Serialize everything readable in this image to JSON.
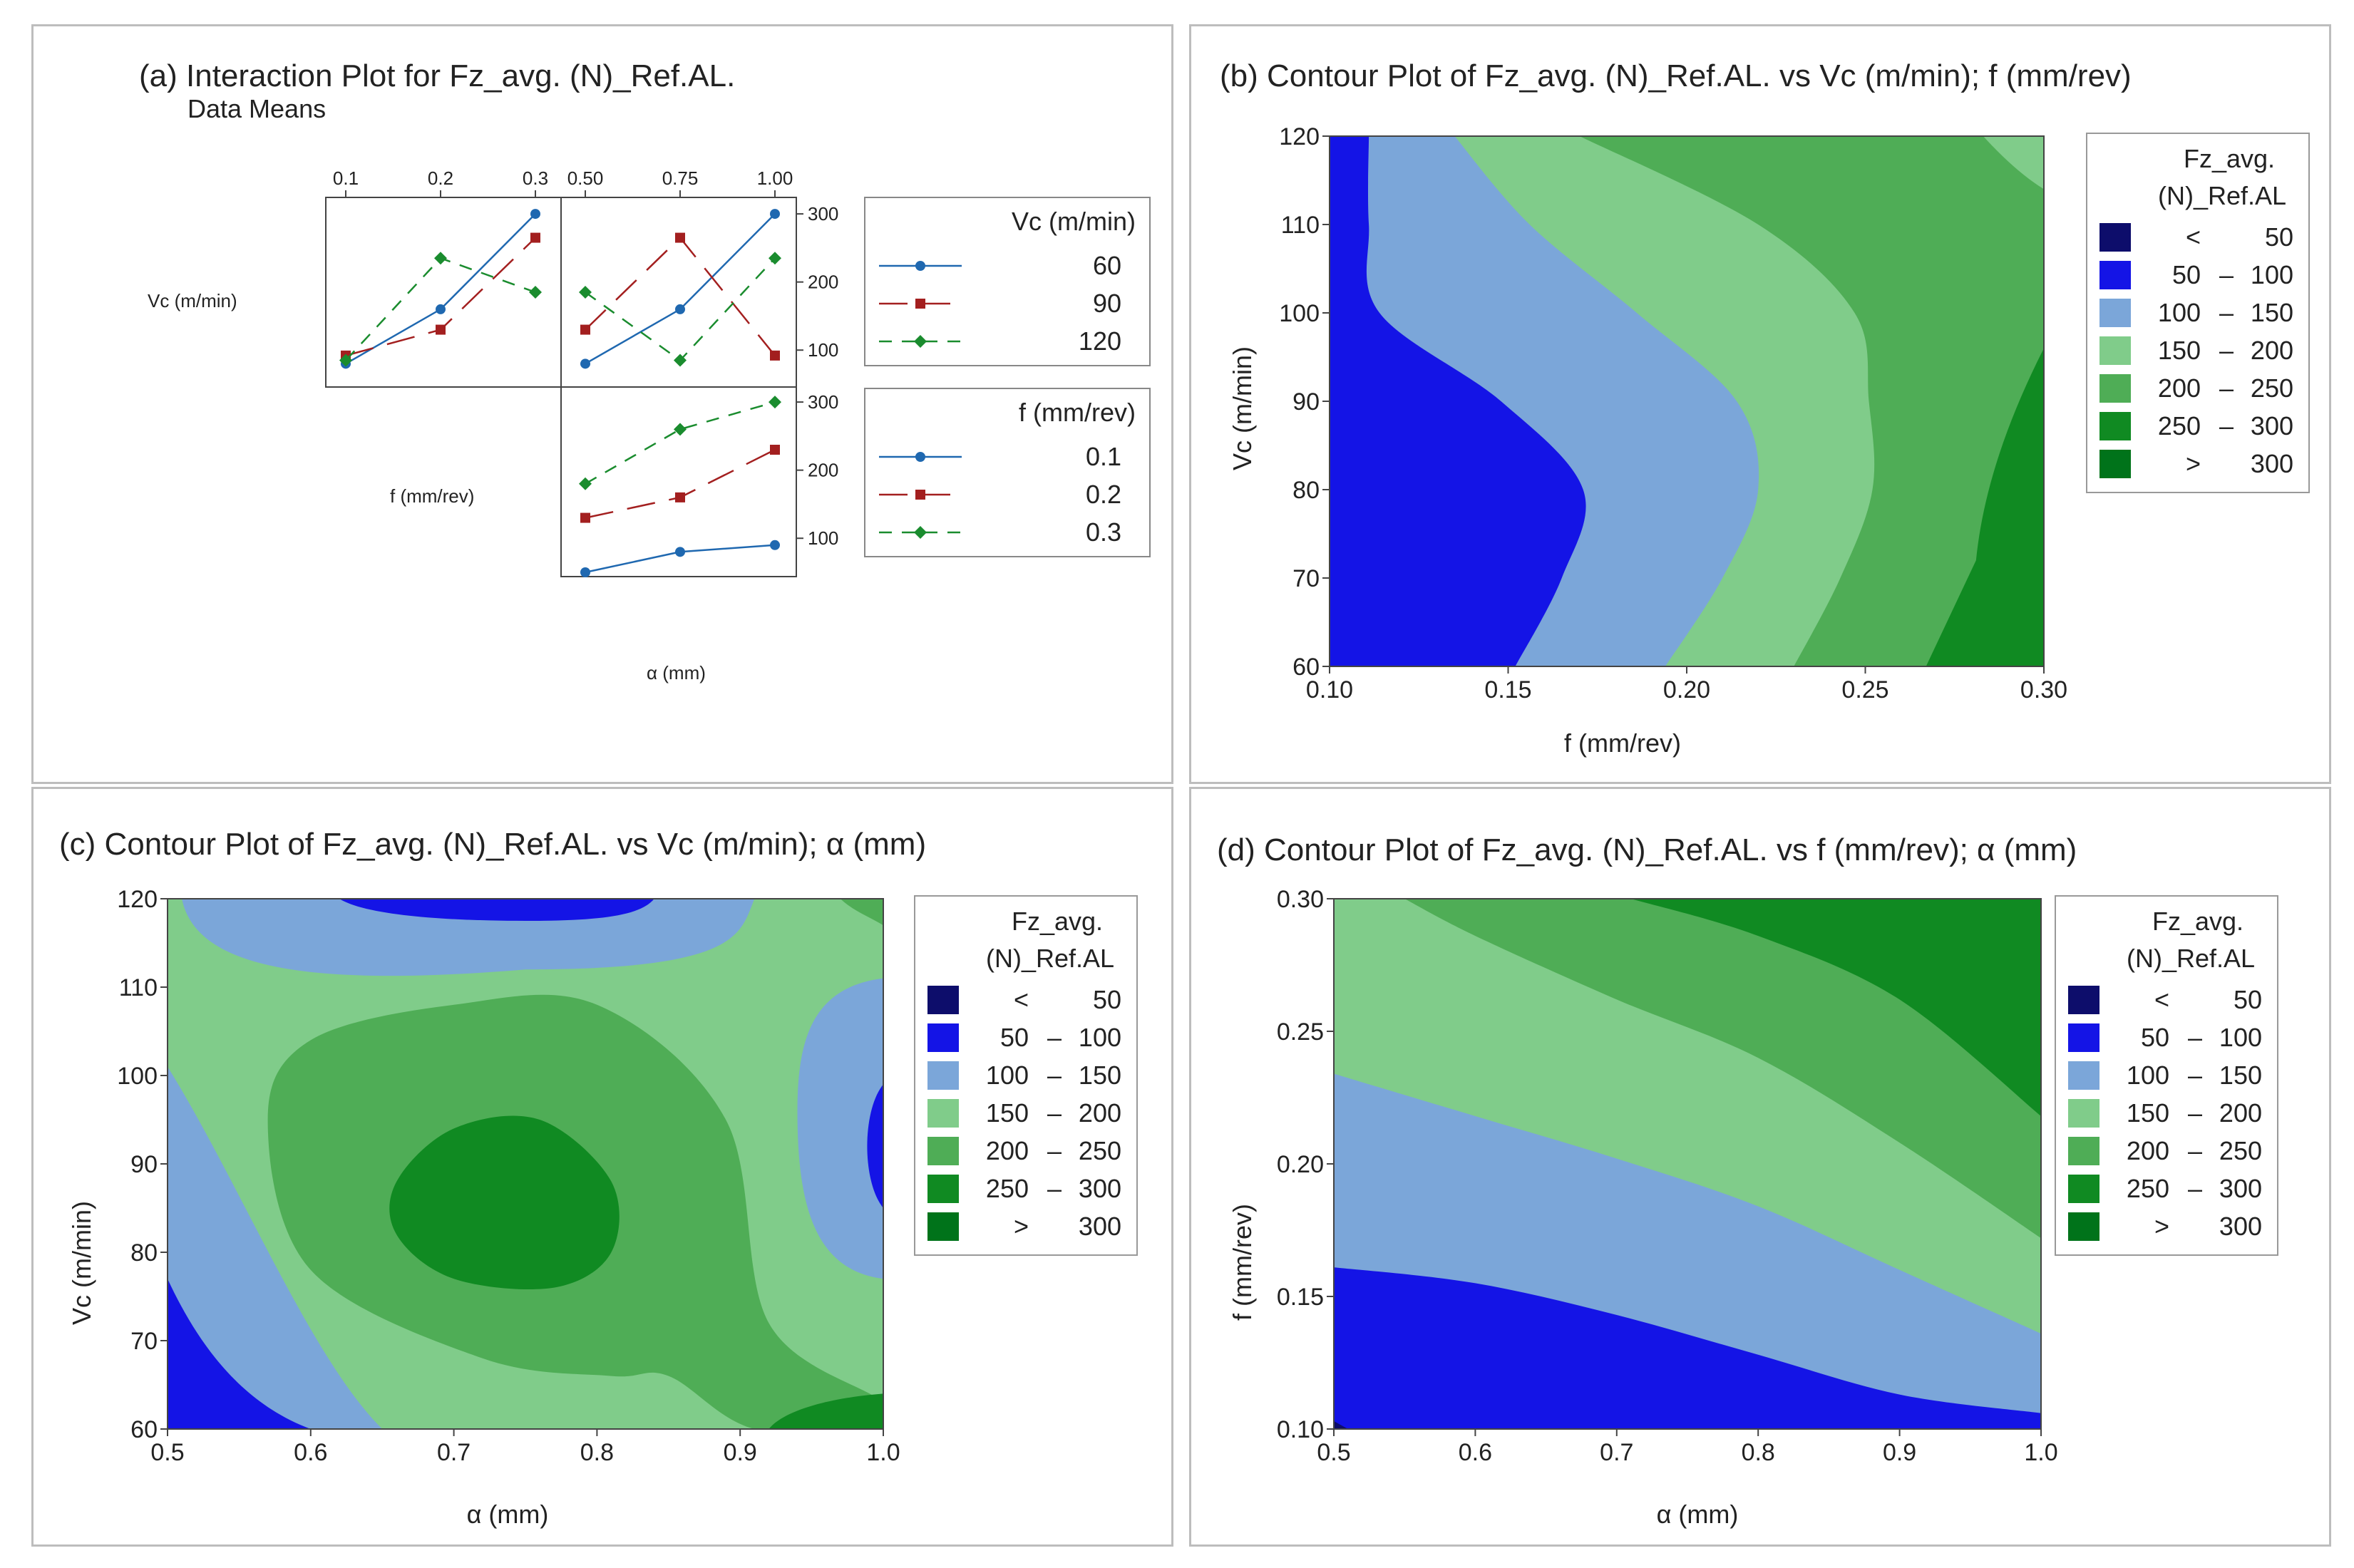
{
  "colors": {
    "c_lt50": "#0d0d6b",
    "c_50_100": "#1414e6",
    "c_100_150": "#7ba6d9",
    "c_150_200": "#80cc8a",
    "c_200_250": "#4fad56",
    "c_250_300": "#108a22",
    "c_gt300": "#00731a",
    "vc60": "#1f68b0",
    "vc90": "#a31f1f",
    "vc120": "#1a8c2e"
  },
  "contour_legend": {
    "title_line1": "Fz_avg.",
    "title_line2": "(N)_Ref.AL",
    "rows": [
      {
        "lo": "<",
        "dash": "",
        "hi": "50",
        "color": "#0d0d6b"
      },
      {
        "lo": "50",
        "dash": "–",
        "hi": "100",
        "color": "#1414e6"
      },
      {
        "lo": "100",
        "dash": "–",
        "hi": "150",
        "color": "#7ba6d9"
      },
      {
        "lo": "150",
        "dash": "–",
        "hi": "200",
        "color": "#80cc8a"
      },
      {
        "lo": "200",
        "dash": "–",
        "hi": "250",
        "color": "#4fad56"
      },
      {
        "lo": "250",
        "dash": "–",
        "hi": "300",
        "color": "#108a22"
      },
      {
        "lo": ">",
        "dash": "",
        "hi": "300",
        "color": "#00731a"
      }
    ]
  },
  "chart_data": [
    {
      "type": "line",
      "title": "(a) Interaction Plot for Fz_avg. (N)_Ref.AL.",
      "subtitle": "Data Means",
      "row_labels": [
        "Vc (m/min)",
        "f (mm/rev)"
      ],
      "col_label": "α (mm)",
      "f_ticks": [
        "0.1",
        "0.2",
        "0.3"
      ],
      "alpha_ticks": [
        "0.50",
        "0.75",
        "1.00"
      ],
      "y_ticks": [
        "100",
        "200",
        "300"
      ],
      "ylim": [
        50,
        320
      ],
      "legend_vc": {
        "title": "Vc (m/min)",
        "entries": [
          "60",
          "90",
          "120"
        ]
      },
      "legend_f": {
        "title": "f (mm/rev)",
        "entries": [
          "0.1",
          "0.2",
          "0.3"
        ]
      },
      "panels": [
        {
          "name": "f_by_vc",
          "x": [
            0.1,
            0.2,
            0.3
          ],
          "series": [
            {
              "name": "60",
              "values": [
                80,
                160,
                300
              ]
            },
            {
              "name": "90",
              "values": [
                92,
                130,
                265
              ]
            },
            {
              "name": "120",
              "values": [
                85,
                235,
                185
              ]
            }
          ]
        },
        {
          "name": "alpha_by_vc",
          "x": [
            0.5,
            0.75,
            1.0
          ],
          "series": [
            {
              "name": "60",
              "values": [
                80,
                160,
                300
              ]
            },
            {
              "name": "90",
              "values": [
                130,
                265,
                92
              ]
            },
            {
              "name": "120",
              "values": [
                185,
                85,
                235
              ]
            }
          ]
        },
        {
          "name": "alpha_by_f",
          "x": [
            0.5,
            0.75,
            1.0
          ],
          "series": [
            {
              "name": "0.1",
              "values": [
                50,
                80,
                90
              ]
            },
            {
              "name": "0.2",
              "values": [
                130,
                160,
                230
              ]
            },
            {
              "name": "0.3",
              "values": [
                180,
                260,
                300
              ]
            }
          ]
        }
      ]
    },
    {
      "type": "heatmap",
      "title": "(b) Contour Plot of Fz_avg. (N)_Ref.AL. vs Vc (m/min); f (mm/rev)",
      "xlabel": "f (mm/rev)",
      "ylabel": "Vc (m/min)",
      "xlim": [
        0.1,
        0.3
      ],
      "ylim": [
        60,
        120
      ],
      "x_ticks": [
        "0.10",
        "0.15",
        "0.20",
        "0.25",
        "0.30"
      ],
      "y_ticks": [
        "60",
        "70",
        "80",
        "90",
        "100",
        "110",
        "120"
      ],
      "boundaries": [
        {
          "level": 100,
          "points": [
            [
              0.111,
              120
            ],
            [
              0.111,
              110
            ],
            [
              0.114,
              100
            ],
            [
              0.148,
              90
            ],
            [
              0.171,
              80
            ],
            [
              0.165,
              70
            ],
            [
              0.152,
              60
            ]
          ]
        },
        {
          "level": 150,
          "points": [
            [
              0.135,
              120
            ],
            [
              0.156,
              110
            ],
            [
              0.186,
              100
            ],
            [
              0.214,
              90
            ],
            [
              0.22,
              80
            ],
            [
              0.21,
              70
            ],
            [
              0.194,
              60
            ]
          ]
        },
        {
          "level": 200,
          "points": [
            [
              0.17,
              120
            ],
            [
              0.22,
              110
            ],
            [
              0.247,
              100
            ],
            [
              0.251,
              90
            ],
            [
              0.252,
              80
            ],
            [
              0.243,
              70
            ],
            [
              0.23,
              60
            ]
          ]
        },
        {
          "level": 250,
          "points": [
            [
              0.283,
              120
            ],
            [
              0.294,
              115
            ],
            [
              0.3,
              115
            ],
            [
              0.3,
              60
            ],
            [
              0.265,
              60
            ],
            [
              0.27,
              70
            ],
            [
              0.285,
              80
            ],
            [
              0.3,
              90
            ]
          ]
        },
        {
          "level": 300,
          "points": [
            [
              0.3,
              96
            ],
            [
              0.288,
              85
            ],
            [
              0.278,
              72
            ],
            [
              0.271,
              60
            ]
          ]
        }
      ]
    },
    {
      "type": "heatmap",
      "title": "(c) Contour Plot of Fz_avg. (N)_Ref.AL. vs Vc (m/min); α (mm)",
      "xlabel": "α (mm)",
      "ylabel": "Vc (m/min)",
      "xlim": [
        0.5,
        1.0
      ],
      "ylim": [
        60,
        120
      ],
      "x_ticks": [
        "0.5",
        "0.6",
        "0.7",
        "0.8",
        "0.9",
        "1.0"
      ],
      "y_ticks": [
        "60",
        "70",
        "80",
        "90",
        "100",
        "110",
        "120"
      ],
      "boundaries": [
        {
          "level": 250,
          "points": [
            [
              0.66,
              88
            ],
            [
              0.7,
              94
            ],
            [
              0.76,
              95
            ],
            [
              0.81,
              88
            ],
            [
              0.81,
              80
            ],
            [
              0.77,
              76
            ],
            [
              0.7,
              77
            ],
            [
              0.66,
              82
            ]
          ]
        },
        {
          "level": 200,
          "points": [
            [
              0.57,
              95
            ],
            [
              0.6,
              104
            ],
            [
              0.7,
              108
            ],
            [
              0.8,
              108
            ],
            [
              0.89,
              95
            ],
            [
              0.92,
              72
            ],
            [
              1.0,
              63
            ],
            [
              1.0,
              60
            ],
            [
              0.91,
              60
            ],
            [
              0.85,
              66
            ],
            [
              0.81,
              66
            ],
            [
              0.72,
              68
            ],
            [
              0.6,
              78
            ]
          ]
        }
      ]
    },
    {
      "type": "heatmap",
      "title": "(d) Contour Plot of Fz_avg. (N)_Ref.AL. vs f (mm/rev); α (mm)",
      "xlabel": "α (mm)",
      "ylabel": "f (mm/rev)",
      "xlim": [
        0.5,
        1.0
      ],
      "ylim": [
        0.1,
        0.3
      ],
      "x_ticks": [
        "0.5",
        "0.6",
        "0.7",
        "0.8",
        "0.9",
        "1.0"
      ],
      "y_ticks": [
        "0.10",
        "0.15",
        "0.20",
        "0.25",
        "0.30"
      ],
      "boundaries": [
        {
          "level": 100,
          "points": [
            [
              0.5,
              0.161
            ],
            [
              0.6,
              0.155
            ],
            [
              0.7,
              0.143
            ],
            [
              0.8,
              0.128
            ],
            [
              0.9,
              0.113
            ],
            [
              1.0,
              0.106
            ]
          ]
        },
        {
          "level": 150,
          "points": [
            [
              0.5,
              0.234
            ],
            [
              0.6,
              0.218
            ],
            [
              0.7,
              0.202
            ],
            [
              0.8,
              0.184
            ],
            [
              0.9,
              0.16
            ],
            [
              1.0,
              0.136
            ]
          ]
        },
        {
          "level": 200,
          "points": [
            [
              0.55,
              0.3
            ],
            [
              0.6,
              0.286
            ],
            [
              0.7,
              0.262
            ],
            [
              0.8,
              0.24
            ],
            [
              0.9,
              0.208
            ],
            [
              1.0,
              0.172
            ]
          ]
        },
        {
          "level": 250,
          "points": [
            [
              0.71,
              0.3
            ],
            [
              0.8,
              0.286
            ],
            [
              0.9,
              0.262
            ],
            [
              1.0,
              0.218
            ]
          ]
        }
      ]
    }
  ]
}
